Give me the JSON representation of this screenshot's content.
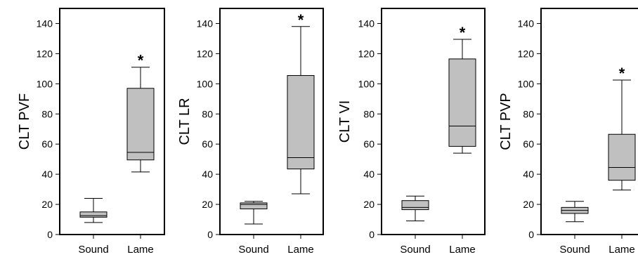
{
  "chart_data": [
    {
      "type": "box",
      "ylabel": "CLT PVF",
      "ylim": [
        0,
        150
      ],
      "yticks": [
        0,
        20,
        40,
        60,
        80,
        100,
        120,
        140
      ],
      "categories": [
        "Sound",
        "Lame"
      ],
      "boxes": [
        {
          "category": "Sound",
          "whisker_low": 8,
          "q1": 11.5,
          "median": 12.5,
          "q3": 15,
          "whisker_high": 24
        },
        {
          "category": "Lame",
          "whisker_low": 41.5,
          "q1": 49.5,
          "median": 54.5,
          "q3": 97,
          "whisker_high": 111
        }
      ],
      "annotations": [
        {
          "category": "Lame",
          "text": "*"
        }
      ]
    },
    {
      "type": "box",
      "ylabel": "CLT LR",
      "ylim": [
        0,
        150
      ],
      "yticks": [
        0,
        20,
        40,
        60,
        80,
        100,
        120,
        140
      ],
      "categories": [
        "Sound",
        "Lame"
      ],
      "boxes": [
        {
          "category": "Sound",
          "whisker_low": 7,
          "q1": 17,
          "median": 20,
          "q3": 21,
          "whisker_high": 22
        },
        {
          "category": "Lame",
          "whisker_low": 27,
          "q1": 43.5,
          "median": 51,
          "q3": 105.5,
          "whisker_high": 138
        }
      ],
      "annotations": [
        {
          "category": "Lame",
          "text": "*"
        }
      ]
    },
    {
      "type": "box",
      "ylabel": "CLT VI",
      "ylim": [
        0,
        150
      ],
      "yticks": [
        0,
        20,
        40,
        60,
        80,
        100,
        120,
        140
      ],
      "categories": [
        "Sound",
        "Lame"
      ],
      "boxes": [
        {
          "category": "Sound",
          "whisker_low": 9,
          "q1": 16.5,
          "median": 18,
          "q3": 22.5,
          "whisker_high": 25.5
        },
        {
          "category": "Lame",
          "whisker_low": 54,
          "q1": 58.5,
          "median": 72,
          "q3": 116.5,
          "whisker_high": 129.5
        }
      ],
      "annotations": [
        {
          "category": "Lame",
          "text": "*"
        }
      ]
    },
    {
      "type": "box",
      "ylabel": "CLT PVP",
      "ylim": [
        0,
        150
      ],
      "yticks": [
        0,
        20,
        40,
        60,
        80,
        100,
        120,
        140
      ],
      "categories": [
        "Sound",
        "Lame"
      ],
      "boxes": [
        {
          "category": "Sound",
          "whisker_low": 8.5,
          "q1": 14,
          "median": 16,
          "q3": 18,
          "whisker_high": 22
        },
        {
          "category": "Lame",
          "whisker_low": 29.5,
          "q1": 36,
          "median": 44.5,
          "q3": 66.5,
          "whisker_high": 102.5
        }
      ],
      "annotations": [
        {
          "category": "Lame",
          "text": "*"
        }
      ]
    }
  ],
  "style": {
    "box_fill": "#c0c0c0",
    "line_color": "#000000",
    "background": "#ffffff"
  }
}
